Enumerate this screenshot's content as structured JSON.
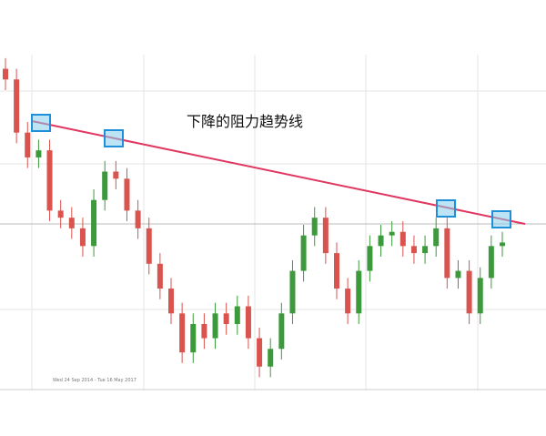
{
  "chart_data": {
    "type": "candlestick",
    "annotation": "下降的阻力趋势线",
    "date_range": "Wed 24 Sep 2014 - Tue 16 May 2017",
    "categories": [
      null,
      null,
      null,
      null,
      null,
      null,
      null,
      null,
      null,
      null,
      null,
      null,
      null,
      null,
      null,
      null,
      null,
      null,
      null,
      null,
      null,
      null,
      null,
      null,
      null,
      null,
      null,
      null,
      null,
      null,
      null,
      null,
      null,
      null,
      null,
      null,
      null,
      null,
      null,
      null,
      null,
      null,
      null,
      null,
      null,
      null
    ],
    "open": [
      96,
      93,
      78,
      71,
      73,
      56,
      54,
      51,
      46,
      59,
      67,
      65,
      56,
      51,
      41,
      34,
      27,
      16,
      24,
      20,
      27,
      24,
      29,
      20,
      12,
      17,
      27,
      39,
      49,
      54,
      44,
      34,
      27,
      39,
      46,
      49,
      50,
      46,
      44,
      46,
      51,
      37,
      39,
      27,
      37,
      46
    ],
    "high": [
      99,
      96,
      81,
      76,
      76,
      59,
      57,
      54,
      62,
      70,
      70,
      68,
      59,
      54,
      44,
      37,
      30,
      27,
      27,
      30,
      30,
      32,
      32,
      23,
      20,
      30,
      42,
      52,
      57,
      57,
      47,
      37,
      42,
      49,
      52,
      53,
      53,
      49,
      49,
      54,
      54,
      42,
      42,
      40,
      49,
      50
    ],
    "low": [
      90,
      75,
      68,
      68,
      53,
      51,
      48,
      43,
      43,
      56,
      62,
      53,
      48,
      38,
      31,
      24,
      13,
      13,
      17,
      17,
      21,
      21,
      17,
      9,
      9,
      14,
      24,
      36,
      46,
      41,
      31,
      24,
      24,
      36,
      43,
      46,
      43,
      41,
      41,
      43,
      34,
      34,
      24,
      24,
      34,
      43
    ],
    "close": [
      93,
      78,
      71,
      73,
      56,
      54,
      51,
      46,
      59,
      67,
      65,
      56,
      51,
      41,
      34,
      27,
      16,
      24,
      20,
      27,
      24,
      29,
      20,
      12,
      17,
      27,
      39,
      49,
      54,
      44,
      34,
      27,
      39,
      46,
      49,
      50,
      46,
      44,
      46,
      51,
      37,
      39,
      27,
      37,
      46,
      47
    ],
    "up_color": "#3c9a3c",
    "down_color": "#d9534f",
    "ylim": [
      5,
      100
    ]
  }
}
